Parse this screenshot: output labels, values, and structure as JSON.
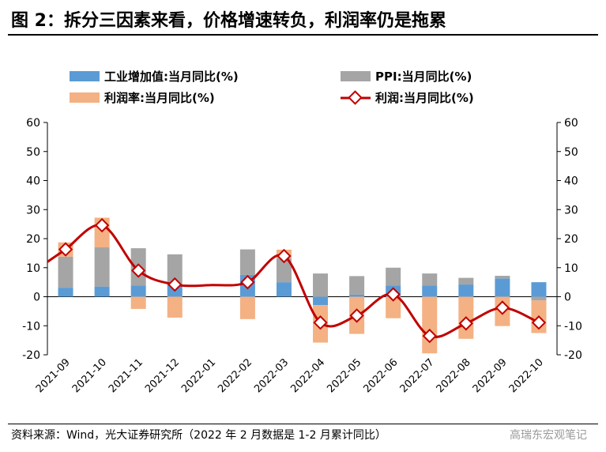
{
  "title": "图 2：拆分三因素来看，价格增速转负，利润率仍是拖累",
  "source": "资料来源：Wind，光大证券研究所（2022 年 2 月数据是 1-2 月累计同比）",
  "watermark": "高瑞东宏观笔记",
  "colors": {
    "industrial": "#5b9bd5",
    "ppi": "#a5a5a5",
    "margin": "#f4b183",
    "profit": "#c00000"
  },
  "chart_data": {
    "type": "bar",
    "stacked": true,
    "categories": [
      "2021-09",
      "2021-10",
      "2021-11",
      "2021-12",
      "2022-01",
      "2022-02",
      "2022-03",
      "2022-04",
      "2022-05",
      "2022-06",
      "2022-07",
      "2022-08",
      "2022-09",
      "2022-10"
    ],
    "series": [
      {
        "name": "工业增加值:当月同比(%)",
        "kind": "bar",
        "values": [
          3.1,
          3.5,
          3.8,
          4.3,
          null,
          7.5,
          5.0,
          -2.9,
          0.7,
          3.9,
          3.8,
          4.2,
          6.3,
          5.0
        ]
      },
      {
        "name": "PPI:当月同比(%)",
        "kind": "bar",
        "values": [
          10.7,
          13.5,
          12.9,
          10.3,
          null,
          8.8,
          8.3,
          8.0,
          6.4,
          6.1,
          4.2,
          2.3,
          0.9,
          -1.3
        ]
      },
      {
        "name": "利润率:当月同比(%)",
        "kind": "bar",
        "values": [
          4.9,
          10.2,
          -4.2,
          -7.2,
          null,
          -7.7,
          2.9,
          -12.9,
          -12.8,
          -7.4,
          -19.5,
          -14.5,
          -10.1,
          -11.2
        ]
      },
      {
        "name": "利润:当月同比(%)",
        "kind": "line",
        "values": [
          16.3,
          24.6,
          9.0,
          4.2,
          null,
          5.0,
          14.0,
          -8.9,
          -6.5,
          0.8,
          -13.5,
          -9.2,
          -3.8,
          -8.9
        ]
      }
    ],
    "line_start_value": 12.0,
    "ylim": [
      -20,
      60
    ],
    "yticks": [
      -20,
      -10,
      0,
      10,
      20,
      30,
      40,
      50,
      60
    ],
    "ytick_labels": [
      "-20",
      "-10",
      "0",
      "10",
      "20",
      "30",
      "40",
      "50",
      "60"
    ],
    "legend": "top, two rows"
  }
}
